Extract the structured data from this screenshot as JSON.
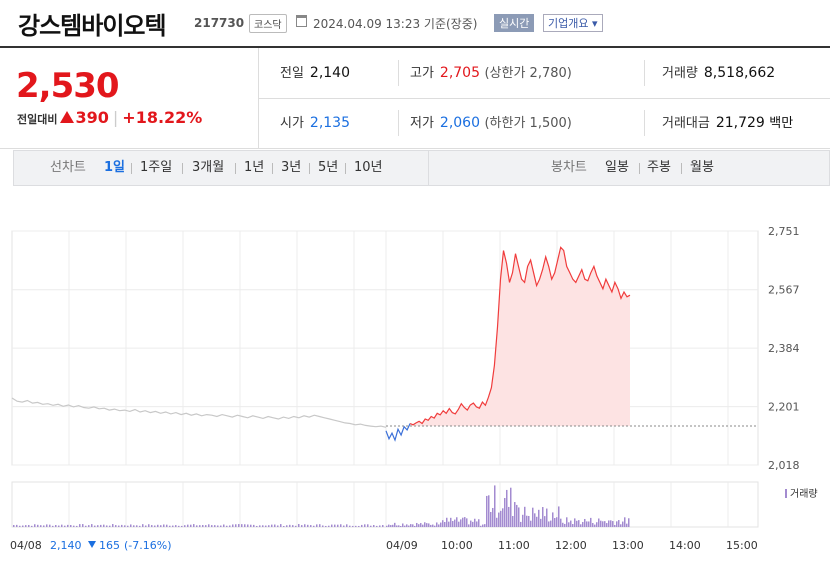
{
  "header": {
    "name": "강스템바이오텍",
    "code": "217730",
    "market": "코스닥",
    "datetime": "2024.04.09 13:23 기준(장중)",
    "realtime": "실시간",
    "company_button": "기업개요 ▾"
  },
  "summary": {
    "price": "2,530",
    "change_label": "전일대비",
    "change": "390",
    "change_pct": "+18.22%",
    "prev_close_label": "전일",
    "prev_close": "2,140",
    "high_label": "고가",
    "high": "2,705",
    "upper_limit": "(상한가 2,780)",
    "volume_label": "거래량",
    "volume": "8,518,662",
    "open_label": "시가",
    "open": "2,135",
    "low_label": "저가",
    "low": "2,060",
    "lower_limit": "(하한가 1,500)",
    "amount_label": "거래대금",
    "amount": "21,729",
    "amount_unit": "백만"
  },
  "tabs": {
    "line_title": "선차트",
    "line_periods": [
      "1일",
      "1주일",
      "3개월",
      "1년",
      "3년",
      "5년",
      "10년"
    ],
    "active": "1일",
    "candle_title": "봉차트",
    "candle_periods": [
      "일봉",
      "주봉",
      "월봉"
    ]
  },
  "chart_data": {
    "type": "line",
    "y_ticks": [
      "2,751",
      "2,567",
      "2,384",
      "2,201",
      "2,018"
    ],
    "ylim": [
      2018,
      2751
    ],
    "baseline": 2140,
    "x_ticks": [
      "04/08",
      "04/09",
      "10:00",
      "11:00",
      "12:00",
      "13:00",
      "14:00",
      "15:00"
    ],
    "colors": {
      "prev_day": "#c8c8c8",
      "below_baseline": "#3a6fd8",
      "above_baseline": "#f03c3c",
      "fill_above": "#fde3e3",
      "volume": "#a38bd0"
    },
    "series": [
      {
        "values": [
          2228,
          2218,
          2215,
          2220,
          2212,
          2214,
          2208,
          2210,
          2205,
          2208,
          2202,
          2206,
          2200,
          2204,
          2198,
          2196,
          2200,
          2194,
          2196,
          2190,
          2193,
          2188,
          2190,
          2186,
          2192,
          2184,
          2188,
          2182,
          2186,
          2180,
          2184,
          2178,
          2182,
          2176,
          2180,
          2174,
          2178,
          2172,
          2176,
          2174,
          2170,
          2176,
          2172,
          2168,
          2174,
          2170,
          2166,
          2172,
          2168,
          2164,
          2170,
          2166,
          2162,
          2168,
          2164,
          2170,
          2166,
          2172,
          2168,
          2174,
          2170,
          2166,
          2162,
          2158,
          2154,
          2150,
          2148,
          2144,
          2146,
          2142,
          2140,
          2138,
          2140,
          2136
        ]
      },
      {
        "values": [
          2125,
          2100,
          2118,
          2096,
          2130,
          2112,
          2138,
          2128,
          2148,
          2144,
          2150,
          2155,
          2148,
          2162,
          2158,
          2170,
          2165,
          2180,
          2175,
          2188,
          2180,
          2195,
          2182,
          2178,
          2192,
          2210,
          2198,
          2190,
          2206,
          2212,
          2200,
          2196,
          2215,
          2205,
          2230,
          2260,
          2330,
          2450,
          2600,
          2690,
          2650,
          2590,
          2620,
          2680,
          2640,
          2600,
          2590,
          2640,
          2660,
          2620,
          2580,
          2600,
          2630,
          2670,
          2640,
          2600,
          2620,
          2660,
          2700,
          2690,
          2640,
          2620,
          2600,
          2590,
          2610,
          2630,
          2600,
          2595,
          2620,
          2640,
          2610,
          2590,
          2570,
          2600,
          2580,
          2560,
          2590,
          2570,
          2540,
          2560,
          2545,
          2550
        ]
      }
    ],
    "volume_label": "거래량",
    "footer": {
      "date": "04/08",
      "close": "2,140",
      "change": "165",
      "change_pct": "(-7.16%)"
    }
  }
}
